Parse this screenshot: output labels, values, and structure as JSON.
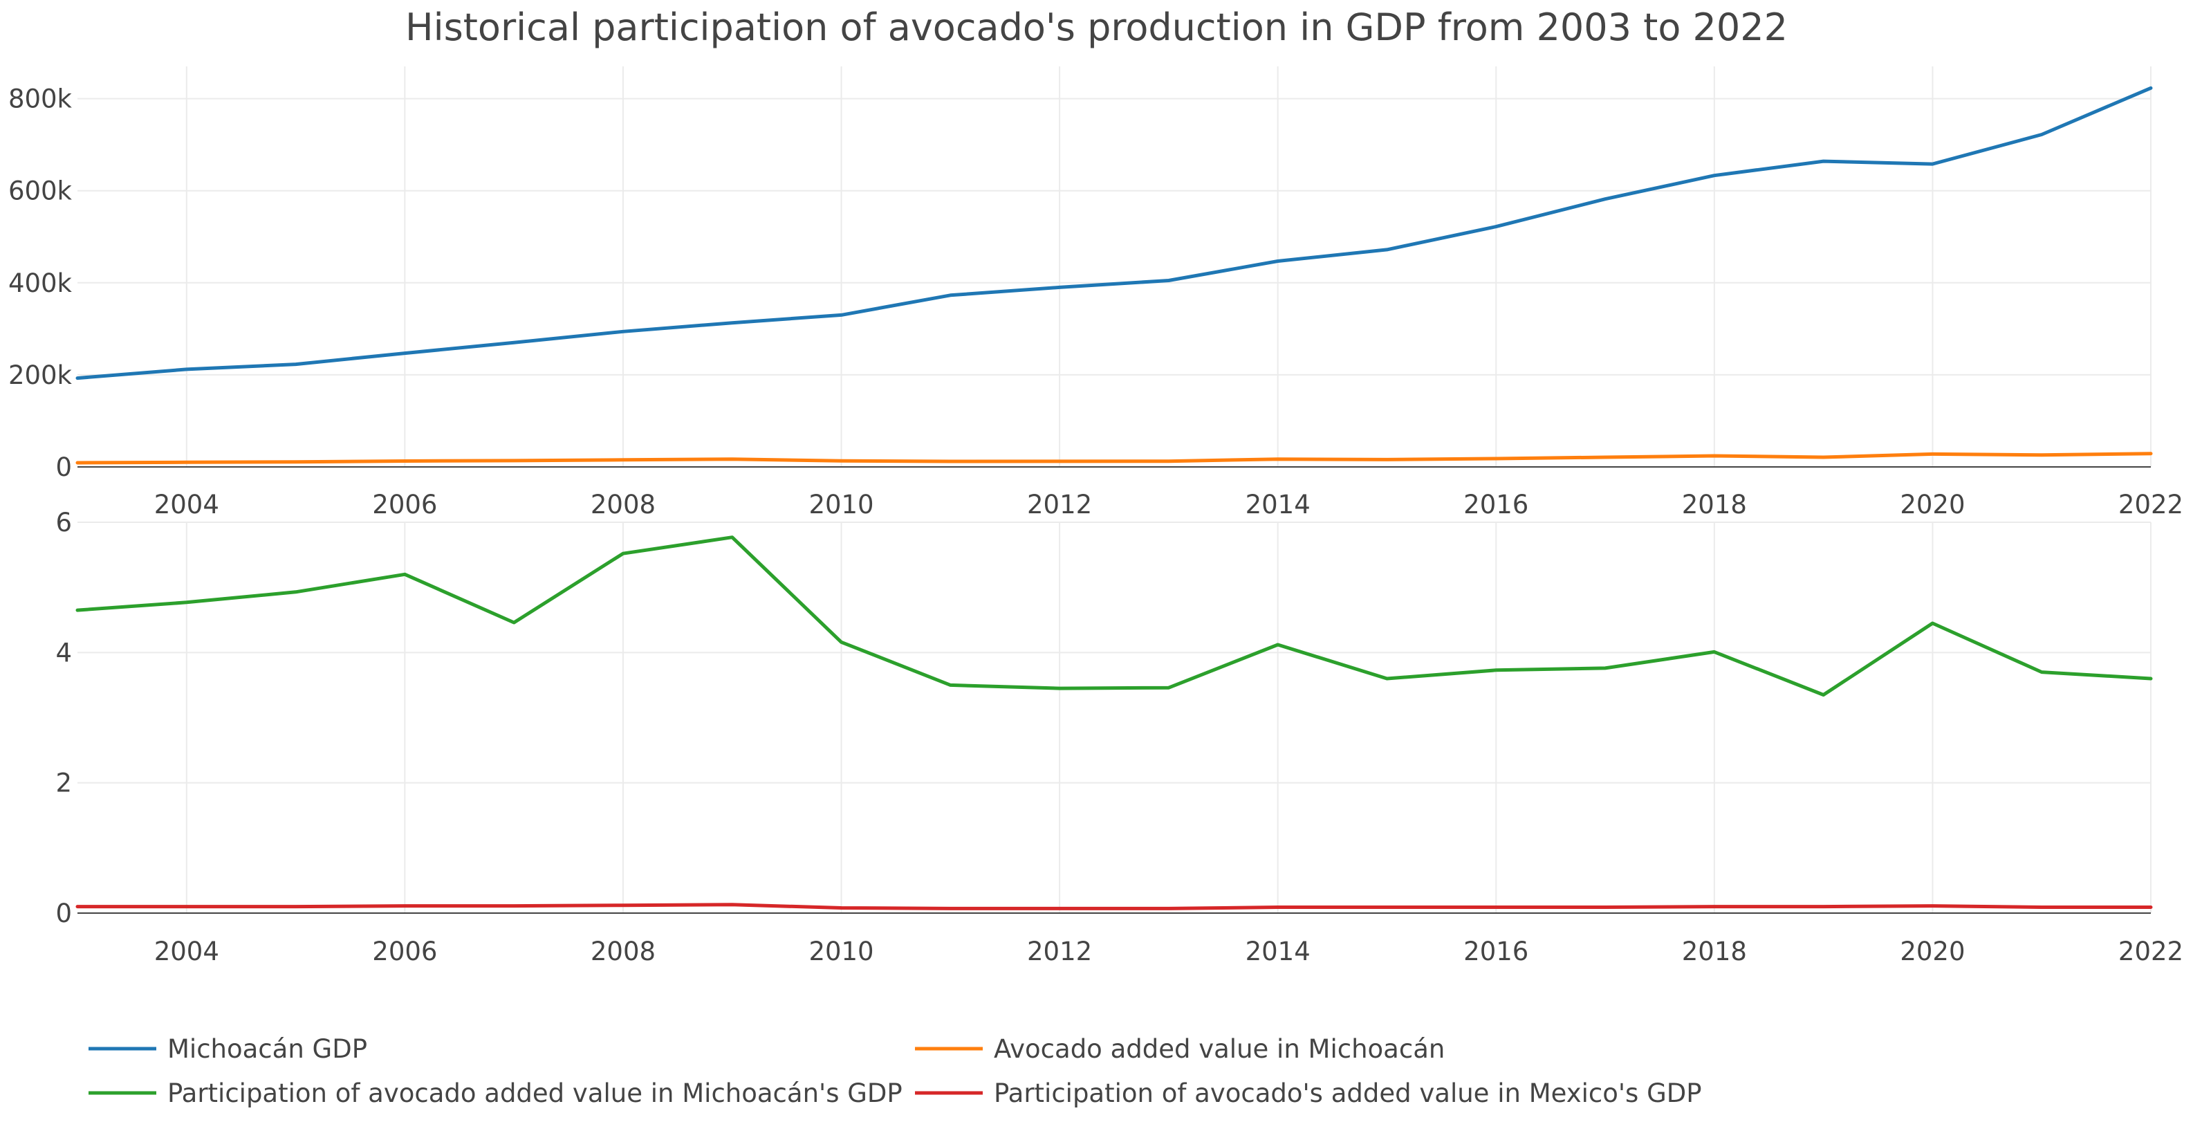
{
  "chart_data": [
    {
      "type": "line",
      "title": "Historical participation of avocado's production in GDP from 2003 to 2022",
      "xlabel": "",
      "ylabel": "",
      "x": [
        2003,
        2004,
        2005,
        2006,
        2007,
        2008,
        2009,
        2010,
        2011,
        2012,
        2013,
        2014,
        2015,
        2016,
        2017,
        2018,
        2019,
        2020,
        2021,
        2022
      ],
      "x_ticks": [
        "2004",
        "2006",
        "2008",
        "2010",
        "2012",
        "2014",
        "2016",
        "2018",
        "2020",
        "2022"
      ],
      "xlim": [
        2003,
        2022
      ],
      "ylim": [
        0,
        870000
      ],
      "y_ticks": [
        {
          "value": 0,
          "label": "0"
        },
        {
          "value": 200000,
          "label": "200k"
        },
        {
          "value": 400000,
          "label": "400k"
        },
        {
          "value": 600000,
          "label": "600k"
        },
        {
          "value": 800000,
          "label": "800k"
        }
      ],
      "grid": true,
      "series": [
        {
          "name": "Michoacán GDP",
          "color": "#1f77b4",
          "values": [
            193000,
            212000,
            223000,
            247000,
            270000,
            294000,
            313000,
            330000,
            373000,
            390000,
            405000,
            447000,
            472000,
            522000,
            582000,
            633000,
            664000,
            658000,
            722000,
            823000
          ]
        },
        {
          "name": "Avocado added value in Michoacán",
          "color": "#ff7f0e",
          "values": [
            9000,
            10000,
            11000,
            12800,
            13600,
            15300,
            17000,
            13000,
            12000,
            12100,
            12500,
            17000,
            16000,
            18000,
            21000,
            24000,
            21000,
            28000,
            26000,
            29000
          ]
        }
      ]
    },
    {
      "type": "line",
      "xlabel": "",
      "ylabel": "",
      "x": [
        2003,
        2004,
        2005,
        2006,
        2007,
        2008,
        2009,
        2010,
        2011,
        2012,
        2013,
        2014,
        2015,
        2016,
        2017,
        2018,
        2019,
        2020,
        2021,
        2022
      ],
      "x_ticks": [
        "2004",
        "2006",
        "2008",
        "2010",
        "2012",
        "2014",
        "2016",
        "2018",
        "2020",
        "2022"
      ],
      "xlim": [
        2003,
        2022
      ],
      "ylim": [
        0,
        6
      ],
      "y_ticks": [
        {
          "value": 0,
          "label": "0"
        },
        {
          "value": 2,
          "label": "2"
        },
        {
          "value": 4,
          "label": "4"
        },
        {
          "value": 6,
          "label": "6"
        }
      ],
      "grid": true,
      "series": [
        {
          "name": "Participation of avocado added value in Michoacán's GDP",
          "color": "#2ca02c",
          "values": [
            4.65,
            4.77,
            4.93,
            5.2,
            4.46,
            5.52,
            5.77,
            4.16,
            3.5,
            3.45,
            3.46,
            4.12,
            3.6,
            3.73,
            3.76,
            4.01,
            3.35,
            4.45,
            3.7,
            3.6
          ]
        },
        {
          "name": "Participation of avocado's added value in Mexico's GDP",
          "color": "#d62728",
          "values": [
            0.1,
            0.1,
            0.1,
            0.11,
            0.11,
            0.12,
            0.13,
            0.08,
            0.07,
            0.07,
            0.07,
            0.09,
            0.09,
            0.09,
            0.09,
            0.1,
            0.1,
            0.11,
            0.09,
            0.09
          ]
        }
      ]
    }
  ],
  "legend": {
    "placement": "bottom",
    "items": [
      {
        "label": "Michoacán GDP",
        "color": "#1f77b4"
      },
      {
        "label": "Avocado added value in Michoacán",
        "color": "#ff7f0e"
      },
      {
        "label": "Participation of avocado added value in Michoacán's GDP",
        "color": "#2ca02c"
      },
      {
        "label": "Participation of avocado's added value in Mexico's GDP",
        "color": "#d62728"
      }
    ]
  }
}
